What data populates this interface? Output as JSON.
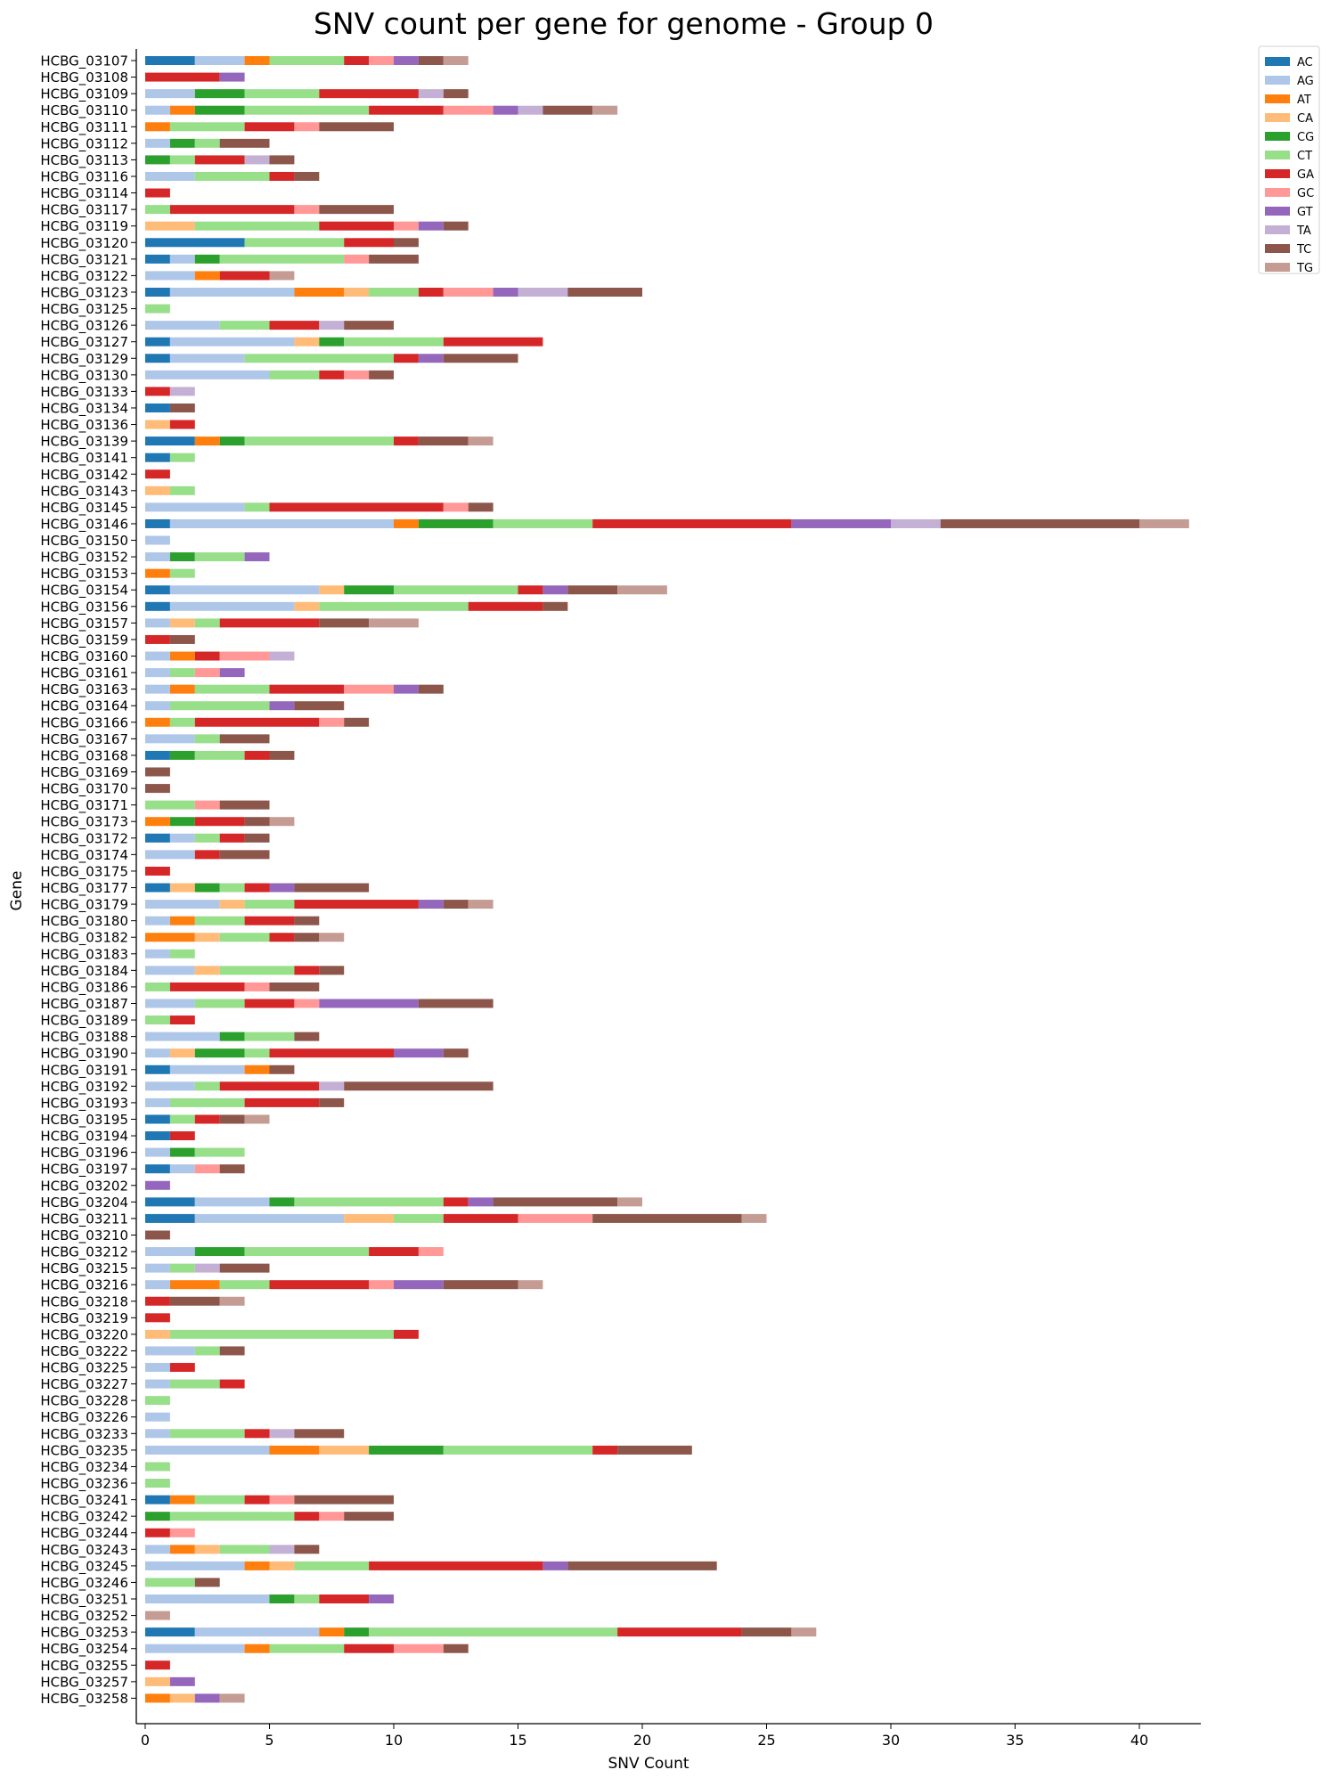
{
  "chart_data": {
    "type": "bar",
    "orientation": "horizontal",
    "stacked": true,
    "title": "SNV count per gene for genome - Group 0",
    "xlabel": "SNV Count",
    "ylabel": "Gene",
    "xlim": [
      0,
      42.5
    ],
    "xticks": [
      0,
      5,
      10,
      15,
      20,
      25,
      30,
      35,
      40
    ],
    "grid": false,
    "legend_position": "upper-right-outside",
    "series": [
      {
        "name": "AC",
        "color": "#1f77b4"
      },
      {
        "name": "AG",
        "color": "#aec7e8"
      },
      {
        "name": "AT",
        "color": "#ff7f0e"
      },
      {
        "name": "CA",
        "color": "#ffbb78"
      },
      {
        "name": "CG",
        "color": "#2ca02c"
      },
      {
        "name": "CT",
        "color": "#98df8a"
      },
      {
        "name": "GA",
        "color": "#d62728"
      },
      {
        "name": "GC",
        "color": "#ff9896"
      },
      {
        "name": "GT",
        "color": "#9467bd"
      },
      {
        "name": "TA",
        "color": "#c5b0d5"
      },
      {
        "name": "TC",
        "color": "#8c564b"
      },
      {
        "name": "TG",
        "color": "#c49c94"
      }
    ],
    "categories": [
      "HCBG_03107",
      "HCBG_03108",
      "HCBG_03109",
      "HCBG_03110",
      "HCBG_03111",
      "HCBG_03112",
      "HCBG_03113",
      "HCBG_03116",
      "HCBG_03114",
      "HCBG_03117",
      "HCBG_03119",
      "HCBG_03120",
      "HCBG_03121",
      "HCBG_03122",
      "HCBG_03123",
      "HCBG_03125",
      "HCBG_03126",
      "HCBG_03127",
      "HCBG_03129",
      "HCBG_03130",
      "HCBG_03133",
      "HCBG_03134",
      "HCBG_03136",
      "HCBG_03139",
      "HCBG_03141",
      "HCBG_03142",
      "HCBG_03143",
      "HCBG_03145",
      "HCBG_03146",
      "HCBG_03150",
      "HCBG_03152",
      "HCBG_03153",
      "HCBG_03154",
      "HCBG_03156",
      "HCBG_03157",
      "HCBG_03159",
      "HCBG_03160",
      "HCBG_03161",
      "HCBG_03163",
      "HCBG_03164",
      "HCBG_03166",
      "HCBG_03167",
      "HCBG_03168",
      "HCBG_03169",
      "HCBG_03170",
      "HCBG_03171",
      "HCBG_03173",
      "HCBG_03172",
      "HCBG_03174",
      "HCBG_03175",
      "HCBG_03177",
      "HCBG_03179",
      "HCBG_03180",
      "HCBG_03182",
      "HCBG_03183",
      "HCBG_03184",
      "HCBG_03186",
      "HCBG_03187",
      "HCBG_03189",
      "HCBG_03188",
      "HCBG_03190",
      "HCBG_03191",
      "HCBG_03192",
      "HCBG_03193",
      "HCBG_03195",
      "HCBG_03194",
      "HCBG_03196",
      "HCBG_03197",
      "HCBG_03202",
      "HCBG_03204",
      "HCBG_03211",
      "HCBG_03210",
      "HCBG_03212",
      "HCBG_03215",
      "HCBG_03216",
      "HCBG_03218",
      "HCBG_03219",
      "HCBG_03220",
      "HCBG_03222",
      "HCBG_03225",
      "HCBG_03227",
      "HCBG_03228",
      "HCBG_03226",
      "HCBG_03233",
      "HCBG_03235",
      "HCBG_03234",
      "HCBG_03236",
      "HCBG_03241",
      "HCBG_03242",
      "HCBG_03244",
      "HCBG_03243",
      "HCBG_03245",
      "HCBG_03246",
      "HCBG_03251",
      "HCBG_03252",
      "HCBG_03253",
      "HCBG_03254",
      "HCBG_03255",
      "HCBG_03257",
      "HCBG_03258"
    ],
    "values": [
      [
        2,
        2,
        1,
        0,
        0,
        3,
        1,
        1,
        1,
        0,
        1,
        1
      ],
      [
        0,
        0,
        0,
        0,
        0,
        0,
        3,
        0,
        1,
        0,
        0,
        0
      ],
      [
        0,
        2,
        0,
        0,
        2,
        3,
        4,
        0,
        0,
        1,
        1,
        0
      ],
      [
        0,
        1,
        1,
        0,
        2,
        5,
        3,
        2,
        1,
        1,
        2,
        1
      ],
      [
        0,
        0,
        1,
        0,
        0,
        3,
        2,
        1,
        0,
        0,
        3,
        0
      ],
      [
        0,
        1,
        0,
        0,
        1,
        1,
        0,
        0,
        0,
        0,
        2,
        0
      ],
      [
        0,
        0,
        0,
        0,
        1,
        1,
        2,
        0,
        0,
        1,
        1,
        0
      ],
      [
        0,
        2,
        0,
        0,
        0,
        3,
        1,
        0,
        0,
        0,
        1,
        0
      ],
      [
        0,
        0,
        0,
        0,
        0,
        0,
        1,
        0,
        0,
        0,
        0,
        0
      ],
      [
        0,
        0,
        0,
        0,
        0,
        1,
        5,
        1,
        0,
        0,
        3,
        0
      ],
      [
        0,
        0,
        0,
        2,
        0,
        5,
        3,
        1,
        1,
        0,
        1,
        0
      ],
      [
        4,
        0,
        0,
        0,
        0,
        4,
        2,
        0,
        0,
        0,
        1,
        0
      ],
      [
        1,
        1,
        0,
        0,
        1,
        5,
        0,
        1,
        0,
        0,
        2,
        0
      ],
      [
        0,
        2,
        1,
        0,
        0,
        0,
        2,
        0,
        0,
        0,
        0,
        1
      ],
      [
        1,
        5,
        2,
        1,
        0,
        2,
        1,
        2,
        1,
        2,
        3,
        0
      ],
      [
        0,
        0,
        0,
        0,
        0,
        1,
        0,
        0,
        0,
        0,
        0,
        0
      ],
      [
        0,
        3,
        0,
        0,
        0,
        2,
        2,
        0,
        0,
        1,
        2,
        0
      ],
      [
        1,
        5,
        0,
        1,
        1,
        4,
        4,
        0,
        0,
        0,
        0,
        0
      ],
      [
        1,
        3,
        0,
        0,
        0,
        6,
        1,
        0,
        1,
        0,
        3,
        0
      ],
      [
        0,
        5,
        0,
        0,
        0,
        2,
        1,
        1,
        0,
        0,
        1,
        0
      ],
      [
        0,
        0,
        0,
        0,
        0,
        0,
        1,
        0,
        0,
        1,
        0,
        0
      ],
      [
        1,
        0,
        0,
        0,
        0,
        0,
        0,
        0,
        0,
        0,
        1,
        0
      ],
      [
        0,
        0,
        0,
        1,
        0,
        0,
        1,
        0,
        0,
        0,
        0,
        0
      ],
      [
        2,
        0,
        1,
        0,
        1,
        6,
        1,
        0,
        0,
        0,
        2,
        1
      ],
      [
        1,
        0,
        0,
        0,
        0,
        1,
        0,
        0,
        0,
        0,
        0,
        0
      ],
      [
        0,
        0,
        0,
        0,
        0,
        0,
        1,
        0,
        0,
        0,
        0,
        0
      ],
      [
        0,
        0,
        0,
        1,
        0,
        1,
        0,
        0,
        0,
        0,
        0,
        0
      ],
      [
        0,
        4,
        0,
        0,
        0,
        1,
        7,
        1,
        0,
        0,
        1,
        0
      ],
      [
        1,
        9,
        1,
        0,
        3,
        4,
        8,
        0,
        4,
        2,
        8,
        2
      ],
      [
        0,
        1,
        0,
        0,
        0,
        0,
        0,
        0,
        0,
        0,
        0,
        0
      ],
      [
        0,
        1,
        0,
        0,
        1,
        2,
        0,
        0,
        1,
        0,
        0,
        0
      ],
      [
        0,
        0,
        1,
        0,
        0,
        1,
        0,
        0,
        0,
        0,
        0,
        0
      ],
      [
        1,
        6,
        0,
        1,
        2,
        5,
        1,
        0,
        1,
        0,
        2,
        2
      ],
      [
        1,
        5,
        0,
        1,
        0,
        6,
        3,
        0,
        0,
        0,
        1,
        0
      ],
      [
        0,
        1,
        0,
        1,
        0,
        1,
        4,
        0,
        0,
        0,
        2,
        2
      ],
      [
        0,
        0,
        0,
        0,
        0,
        0,
        1,
        0,
        0,
        0,
        1,
        0
      ],
      [
        0,
        1,
        1,
        0,
        0,
        0,
        1,
        2,
        0,
        1,
        0,
        0
      ],
      [
        0,
        1,
        0,
        0,
        0,
        1,
        0,
        1,
        1,
        0,
        0,
        0
      ],
      [
        0,
        1,
        1,
        0,
        0,
        3,
        3,
        2,
        1,
        0,
        1,
        0
      ],
      [
        0,
        1,
        0,
        0,
        0,
        4,
        0,
        0,
        1,
        0,
        2,
        0
      ],
      [
        0,
        0,
        1,
        0,
        0,
        1,
        5,
        1,
        0,
        0,
        1,
        0
      ],
      [
        0,
        2,
        0,
        0,
        0,
        1,
        0,
        0,
        0,
        0,
        2,
        0
      ],
      [
        1,
        0,
        0,
        0,
        1,
        2,
        1,
        0,
        0,
        0,
        1,
        0
      ],
      [
        0,
        0,
        0,
        0,
        0,
        0,
        0,
        0,
        0,
        0,
        1,
        0
      ],
      [
        0,
        0,
        0,
        0,
        0,
        0,
        0,
        0,
        0,
        0,
        1,
        0
      ],
      [
        0,
        0,
        0,
        0,
        0,
        2,
        0,
        1,
        0,
        0,
        2,
        0
      ],
      [
        0,
        0,
        1,
        0,
        1,
        0,
        2,
        0,
        0,
        0,
        1,
        1
      ],
      [
        1,
        1,
        0,
        0,
        0,
        1,
        1,
        0,
        0,
        0,
        1,
        0
      ],
      [
        0,
        2,
        0,
        0,
        0,
        0,
        1,
        0,
        0,
        0,
        2,
        0
      ],
      [
        0,
        0,
        0,
        0,
        0,
        0,
        1,
        0,
        0,
        0,
        0,
        0
      ],
      [
        1,
        0,
        0,
        1,
        1,
        1,
        1,
        0,
        1,
        0,
        3,
        0
      ],
      [
        0,
        3,
        0,
        1,
        0,
        2,
        5,
        0,
        1,
        0,
        1,
        1
      ],
      [
        0,
        1,
        1,
        0,
        0,
        2,
        2,
        0,
        0,
        0,
        1,
        0
      ],
      [
        0,
        0,
        2,
        1,
        0,
        2,
        1,
        0,
        0,
        0,
        1,
        1
      ],
      [
        0,
        1,
        0,
        0,
        0,
        1,
        0,
        0,
        0,
        0,
        0,
        0
      ],
      [
        0,
        2,
        0,
        1,
        0,
        3,
        1,
        0,
        0,
        0,
        1,
        0
      ],
      [
        0,
        0,
        0,
        0,
        0,
        1,
        3,
        1,
        0,
        0,
        2,
        0
      ],
      [
        0,
        2,
        0,
        0,
        0,
        2,
        2,
        1,
        4,
        0,
        3,
        0
      ],
      [
        0,
        0,
        0,
        0,
        0,
        1,
        1,
        0,
        0,
        0,
        0,
        0
      ],
      [
        0,
        3,
        0,
        0,
        1,
        2,
        0,
        0,
        0,
        0,
        1,
        0
      ],
      [
        0,
        1,
        0,
        1,
        2,
        1,
        5,
        0,
        2,
        0,
        1,
        0
      ],
      [
        1,
        3,
        1,
        0,
        0,
        0,
        0,
        0,
        0,
        0,
        1,
        0
      ],
      [
        0,
        2,
        0,
        0,
        0,
        1,
        4,
        0,
        0,
        1,
        6,
        0
      ],
      [
        0,
        1,
        0,
        0,
        0,
        3,
        3,
        0,
        0,
        0,
        1,
        0
      ],
      [
        1,
        0,
        0,
        0,
        0,
        1,
        1,
        0,
        0,
        0,
        1,
        1
      ],
      [
        1,
        0,
        0,
        0,
        0,
        0,
        1,
        0,
        0,
        0,
        0,
        0
      ],
      [
        0,
        1,
        0,
        0,
        1,
        2,
        0,
        0,
        0,
        0,
        0,
        0
      ],
      [
        1,
        1,
        0,
        0,
        0,
        0,
        0,
        1,
        0,
        0,
        1,
        0
      ],
      [
        0,
        0,
        0,
        0,
        0,
        0,
        0,
        0,
        1,
        0,
        0,
        0
      ],
      [
        2,
        3,
        0,
        0,
        1,
        6,
        1,
        0,
        1,
        0,
        5,
        1
      ],
      [
        2,
        6,
        0,
        2,
        0,
        2,
        3,
        3,
        0,
        0,
        6,
        1
      ],
      [
        0,
        0,
        0,
        0,
        0,
        0,
        0,
        0,
        0,
        0,
        1,
        0
      ],
      [
        0,
        2,
        0,
        0,
        2,
        5,
        2,
        1,
        0,
        0,
        0,
        0
      ],
      [
        0,
        1,
        0,
        0,
        0,
        1,
        0,
        0,
        0,
        1,
        2,
        0
      ],
      [
        0,
        1,
        2,
        0,
        0,
        2,
        4,
        1,
        2,
        0,
        3,
        1
      ],
      [
        0,
        0,
        0,
        0,
        0,
        0,
        1,
        0,
        0,
        0,
        2,
        1
      ],
      [
        0,
        0,
        0,
        0,
        0,
        0,
        1,
        0,
        0,
        0,
        0,
        0
      ],
      [
        0,
        0,
        0,
        1,
        0,
        9,
        1,
        0,
        0,
        0,
        0,
        0
      ],
      [
        0,
        2,
        0,
        0,
        0,
        1,
        0,
        0,
        0,
        0,
        1,
        0
      ],
      [
        0,
        1,
        0,
        0,
        0,
        0,
        1,
        0,
        0,
        0,
        0,
        0
      ],
      [
        0,
        1,
        0,
        0,
        0,
        2,
        1,
        0,
        0,
        0,
        0,
        0
      ],
      [
        0,
        0,
        0,
        0,
        0,
        1,
        0,
        0,
        0,
        0,
        0,
        0
      ],
      [
        0,
        1,
        0,
        0,
        0,
        0,
        0,
        0,
        0,
        0,
        0,
        0
      ],
      [
        0,
        1,
        0,
        0,
        0,
        3,
        1,
        0,
        0,
        1,
        2,
        0
      ],
      [
        0,
        5,
        2,
        2,
        3,
        6,
        1,
        0,
        0,
        0,
        3,
        0
      ],
      [
        0,
        0,
        0,
        0,
        0,
        1,
        0,
        0,
        0,
        0,
        0,
        0
      ],
      [
        0,
        0,
        0,
        0,
        0,
        1,
        0,
        0,
        0,
        0,
        0,
        0
      ],
      [
        1,
        0,
        1,
        0,
        0,
        2,
        1,
        1,
        0,
        0,
        4,
        0
      ],
      [
        0,
        0,
        0,
        0,
        1,
        5,
        1,
        1,
        0,
        0,
        2,
        0
      ],
      [
        0,
        0,
        0,
        0,
        0,
        0,
        1,
        1,
        0,
        0,
        0,
        0
      ],
      [
        0,
        1,
        1,
        1,
        0,
        2,
        0,
        0,
        0,
        1,
        1,
        0
      ],
      [
        0,
        4,
        1,
        1,
        0,
        3,
        7,
        0,
        1,
        0,
        6,
        0
      ],
      [
        0,
        0,
        0,
        0,
        0,
        2,
        0,
        0,
        0,
        0,
        1,
        0
      ],
      [
        0,
        5,
        0,
        0,
        1,
        1,
        2,
        0,
        1,
        0,
        0,
        0
      ],
      [
        0,
        0,
        0,
        0,
        0,
        0,
        0,
        0,
        0,
        0,
        0,
        1
      ],
      [
        2,
        5,
        1,
        0,
        1,
        10,
        5,
        0,
        0,
        0,
        2,
        1
      ],
      [
        0,
        4,
        1,
        0,
        0,
        3,
        2,
        2,
        0,
        0,
        1,
        0
      ],
      [
        0,
        0,
        0,
        0,
        0,
        0,
        1,
        0,
        0,
        0,
        0,
        0
      ],
      [
        0,
        0,
        0,
        1,
        0,
        0,
        0,
        0,
        1,
        0,
        0,
        0
      ],
      [
        0,
        0,
        1,
        1,
        0,
        0,
        0,
        0,
        1,
        0,
        0,
        1
      ]
    ]
  }
}
